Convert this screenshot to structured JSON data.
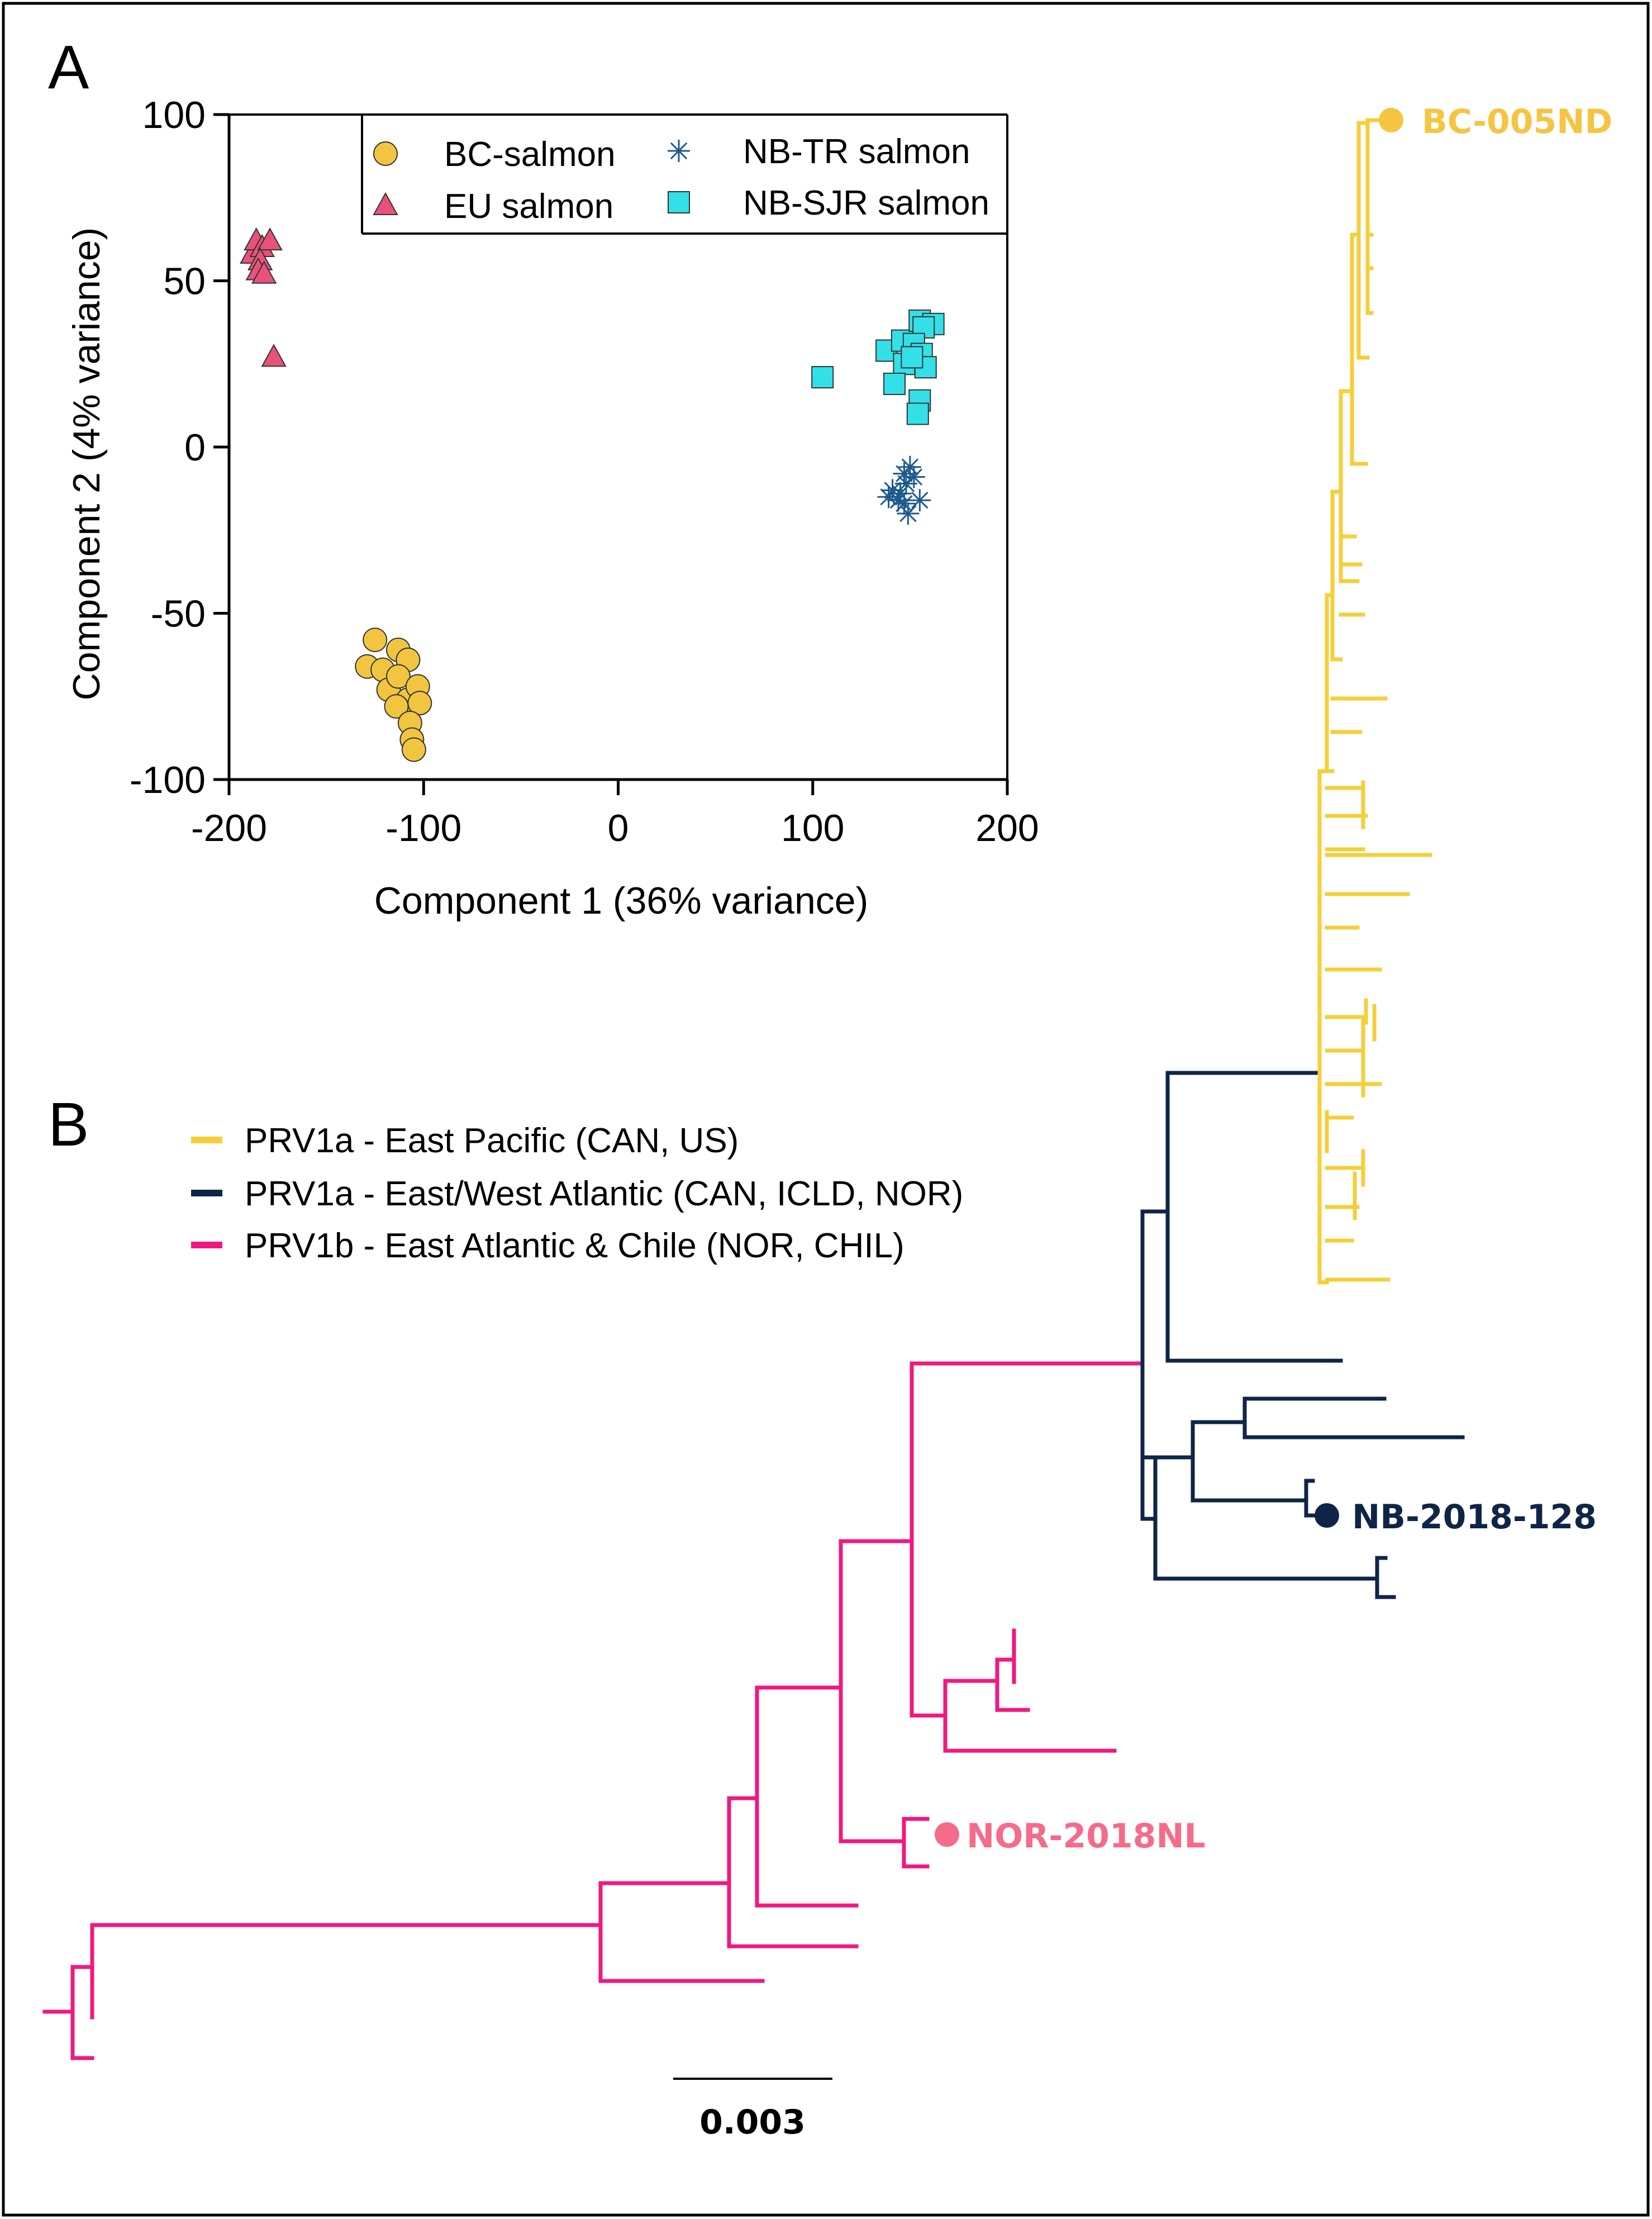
{
  "figure": {
    "panel_a_label": "A",
    "panel_b_label": "B"
  },
  "chart_data": [
    {
      "type": "scatter",
      "panel": "A",
      "xlabel": "Component 1 (36% variance)",
      "ylabel": "Component 2 (4% variance)",
      "xlim": [
        -200,
        200
      ],
      "ylim": [
        -100,
        100
      ],
      "xticks": [
        -200,
        -100,
        0,
        100,
        200
      ],
      "yticks": [
        -100,
        -50,
        0,
        50,
        100
      ],
      "legend_position": "top-right",
      "series": [
        {
          "name": "BC-salmon",
          "marker": "circle",
          "color": "#f2c541",
          "points": [
            [
              -125,
              -58
            ],
            [
              -129,
              -66
            ],
            [
              -121,
              -67
            ],
            [
              -113,
              -61
            ],
            [
              -108,
              -64
            ],
            [
              -118,
              -73
            ],
            [
              -113,
              -69
            ],
            [
              -108,
              -76
            ],
            [
              -114,
              -78
            ],
            [
              -103,
              -72
            ],
            [
              -102,
              -77
            ],
            [
              -107,
              -83
            ],
            [
              -106,
              -88
            ],
            [
              -105,
              -91
            ]
          ]
        },
        {
          "name": "EU salmon",
          "marker": "triangle",
          "color": "#e8527a",
          "points": [
            [
              -188,
              58
            ],
            [
              -186,
              62
            ],
            [
              -183,
              60
            ],
            [
              -179,
              62
            ],
            [
              -184,
              56
            ],
            [
              -185,
              53
            ],
            [
              -182,
              52
            ],
            [
              -177,
              27
            ]
          ]
        },
        {
          "name": "NB-TR salmon",
          "marker": "asterisk",
          "color": "#1d5a8c",
          "points": [
            [
              150,
              -6
            ],
            [
              147,
              -8
            ],
            [
              152,
              -9
            ],
            [
              148,
              -11
            ],
            [
              141,
              -13
            ],
            [
              145,
              -14
            ],
            [
              139,
              -15
            ],
            [
              144,
              -16
            ],
            [
              147,
              -17
            ],
            [
              155,
              -16
            ],
            [
              149,
              -20
            ]
          ]
        },
        {
          "name": "NB-SJR salmon",
          "marker": "square",
          "color": "#34e0e8",
          "points": [
            [
              105,
              21
            ],
            [
              138,
              29
            ],
            [
              146,
              32
            ],
            [
              155,
              38
            ],
            [
              162,
              37
            ],
            [
              157,
              36
            ],
            [
              152,
              31
            ],
            [
              156,
              28
            ],
            [
              147,
              25
            ],
            [
              158,
              24
            ],
            [
              142,
              19
            ],
            [
              155,
              14
            ],
            [
              154,
              10
            ],
            [
              151,
              27
            ]
          ]
        }
      ]
    },
    {
      "type": "phylogenetic-tree",
      "panel": "B",
      "legend": [
        {
          "label": "PRV1a - East Pacific (CAN, US)",
          "color": "#f5cf3a"
        },
        {
          "label": "PRV1a - East/West Atlantic (CAN, ICLD, NOR)",
          "color": "#0f2548"
        },
        {
          "label": "PRV1b - East Atlantic & Chile  (NOR, CHIL)",
          "color": "#f0197e"
        }
      ],
      "highlighted_tips": [
        {
          "label": "BC-005ND",
          "color": "#f5c542"
        },
        {
          "label": "NB-2018-128",
          "color": "#0f2548"
        },
        {
          "label": "NOR-2018NL",
          "color": "#f56b8a"
        }
      ],
      "scale_bar": "0.003"
    }
  ]
}
